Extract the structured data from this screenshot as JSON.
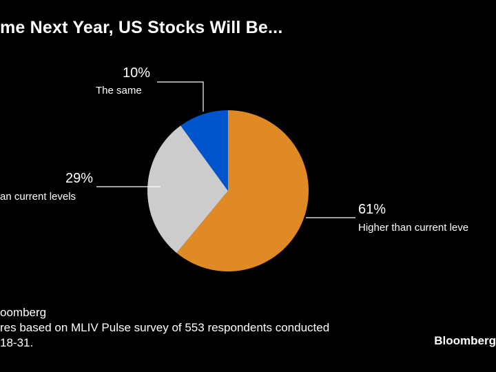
{
  "chart_data": {
    "type": "pie",
    "title": "me Next Year, US Stocks Will Be...",
    "start_angle_deg": 0,
    "direction": "clockwise",
    "slices": [
      {
        "label": "Higher than current leve",
        "value": 61,
        "value_label": "61%",
        "color": "#E08A26"
      },
      {
        "label": "an current levels",
        "value": 29,
        "value_label": "29%",
        "color": "#CCCCCC"
      },
      {
        "label": "The same",
        "value": 10,
        "value_label": "10%",
        "color": "#0055CC"
      }
    ]
  },
  "footer": {
    "source": "oomberg",
    "note": "res based on MLIV Pulse survey of 553 respondents conducted",
    "note2": "18-31."
  },
  "brand": "Bloomberg"
}
